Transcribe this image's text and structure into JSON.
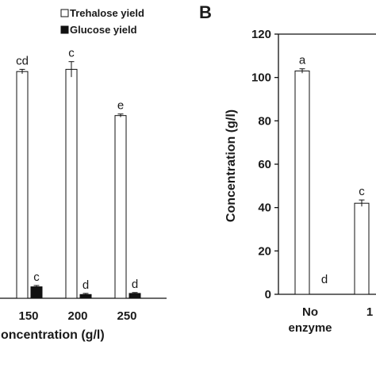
{
  "chart_data": [
    {
      "type": "bar",
      "panel": "",
      "xlabel": "oncentration (g/l)",
      "ylabel": "",
      "categories": [
        "150",
        "200",
        "250"
      ],
      "ylim": [
        0,
        120
      ],
      "series": [
        {
          "name": "Trehalose yield",
          "color": "#ffffff",
          "values": [
            103,
            104,
            83
          ],
          "errors": [
            1,
            3.5,
            0.7
          ],
          "letters": [
            "cd",
            "c",
            "e"
          ]
        },
        {
          "name": "Glucose yield",
          "color": "#111111",
          "values": [
            5.2,
            1.7,
            2.2
          ],
          "errors": [
            0.6,
            0.5,
            0.4
          ],
          "letters": [
            "c",
            "d",
            "d"
          ]
        }
      ]
    },
    {
      "type": "bar",
      "panel": "B",
      "xlabel": "",
      "ylabel": "Concentration (g/l)",
      "categories": [
        [
          "No",
          "enzyme"
        ],
        [
          "1"
        ]
      ],
      "ylim": [
        0,
        120
      ],
      "yticks": [
        0,
        20,
        40,
        60,
        80,
        100,
        120
      ],
      "series": [
        {
          "name": "Trehalose yield",
          "color": "#ffffff",
          "values": [
            103,
            42
          ],
          "errors": [
            1,
            1.5
          ],
          "letters": [
            "a",
            "c"
          ]
        },
        {
          "name": "Glucose yield",
          "color": "#111111",
          "values": [
            0,
            null
          ],
          "errors": [
            0,
            null
          ],
          "letters": [
            "d",
            ""
          ]
        }
      ]
    }
  ]
}
